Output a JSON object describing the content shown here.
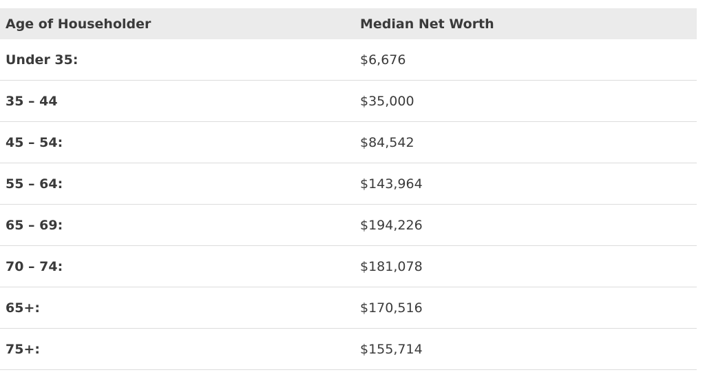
{
  "table": {
    "headers": [
      "Age of Householder",
      "Median Net Worth"
    ],
    "rows": [
      [
        "Under 35:",
        "$6,676"
      ],
      [
        "35 – 44",
        "$35,000"
      ],
      [
        "45 – 54:",
        "$84,542"
      ],
      [
        "55 – 64:",
        "$143,964"
      ],
      [
        "65 – 69:",
        "$194,226"
      ],
      [
        "70 – 74:",
        "$181,078"
      ],
      [
        "65+:",
        "$170,516"
      ],
      [
        "75+:",
        "$155,714"
      ]
    ]
  }
}
